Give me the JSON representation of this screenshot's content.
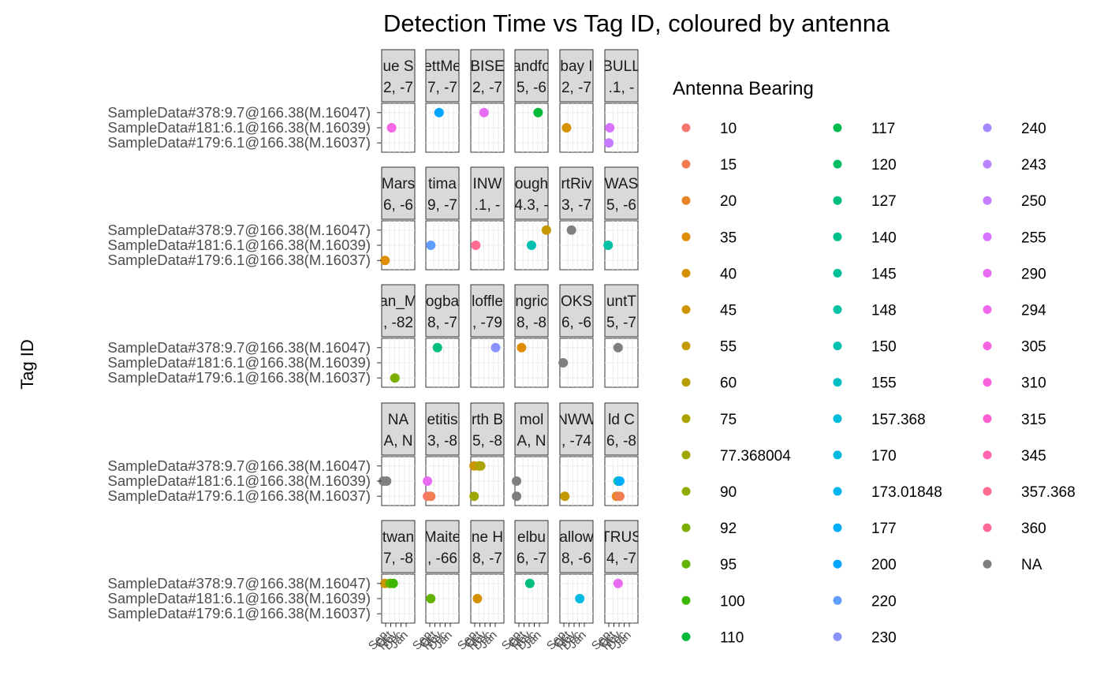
{
  "chart_data": {
    "type": "scatter",
    "title": "Detection Time vs Tag ID, coloured by antenna",
    "ylabel": "Tag ID",
    "y_categories": [
      "SampleData#378:9.7@166.38(M.16047)",
      "SampleData#181:6.1@166.38(M.16039)",
      "SampleData#179:6.1@166.38(M.16037)"
    ],
    "x_tick_labels": [
      "Sep",
      "Oct",
      "Nov",
      "Dec",
      "Jan"
    ],
    "legend_title": "Antenna Bearing",
    "legend": [
      {
        "label": "10",
        "color": "#F8766D"
      },
      {
        "label": "15",
        "color": "#F27D52"
      },
      {
        "label": "20",
        "color": "#E88526"
      },
      {
        "label": "35",
        "color": "#DE8C00"
      },
      {
        "label": "40",
        "color": "#D69100"
      },
      {
        "label": "45",
        "color": "#CD9600"
      },
      {
        "label": "55",
        "color": "#C49A00"
      },
      {
        "label": "60",
        "color": "#B79F00"
      },
      {
        "label": "75",
        "color": "#ABA300"
      },
      {
        "label": "77.368004",
        "color": "#9DA700"
      },
      {
        "label": "90",
        "color": "#8EAB00"
      },
      {
        "label": "92",
        "color": "#7CAE00"
      },
      {
        "label": "95",
        "color": "#64B200"
      },
      {
        "label": "100",
        "color": "#3DB600"
      },
      {
        "label": "110",
        "color": "#00BA38"
      },
      {
        "label": "117",
        "color": "#00BB4E"
      },
      {
        "label": "120",
        "color": "#00BD5F"
      },
      {
        "label": "127",
        "color": "#00BF7D"
      },
      {
        "label": "140",
        "color": "#00C08B"
      },
      {
        "label": "145",
        "color": "#00C097"
      },
      {
        "label": "148",
        "color": "#00C1A3"
      },
      {
        "label": "150",
        "color": "#00C0AF"
      },
      {
        "label": "155",
        "color": "#00BFC4"
      },
      {
        "label": "157.368",
        "color": "#00BCD8"
      },
      {
        "label": "170",
        "color": "#00B9E3"
      },
      {
        "label": "173.01848",
        "color": "#00B4EF"
      },
      {
        "label": "177",
        "color": "#00ADFA"
      },
      {
        "label": "200",
        "color": "#00A5FF"
      },
      {
        "label": "220",
        "color": "#619CFF"
      },
      {
        "label": "230",
        "color": "#8B93FF"
      },
      {
        "label": "240",
        "color": "#A58AFF"
      },
      {
        "label": "243",
        "color": "#B983FF"
      },
      {
        "label": "250",
        "color": "#C77CFF"
      },
      {
        "label": "255",
        "color": "#D774FD"
      },
      {
        "label": "290",
        "color": "#E76BF3"
      },
      {
        "label": "294",
        "color": "#EF67EB"
      },
      {
        "label": "305",
        "color": "#F564E3"
      },
      {
        "label": "310",
        "color": "#FA62DB"
      },
      {
        "label": "315",
        "color": "#FD61D1"
      },
      {
        "label": "345",
        "color": "#FF64B0"
      },
      {
        "label": "357.368",
        "color": "#FF6C91"
      },
      {
        "label": "360",
        "color": "#FF6A98"
      },
      {
        "label": "NA",
        "color": "#7F7F7F"
      }
    ],
    "panels": [
      {
        "strip": [
          "ue S",
          "2, -7"
        ],
        "points": [
          {
            "x": 0.3,
            "y": 1,
            "c": "#F564E3"
          }
        ]
      },
      {
        "strip": [
          "ettMe",
          "7, -7"
        ],
        "points": [
          {
            "x": 0.4,
            "y": 0,
            "c": "#00A5FF"
          }
        ]
      },
      {
        "strip": [
          "BISE",
          "2, -7"
        ],
        "points": [
          {
            "x": 0.4,
            "y": 0,
            "c": "#E76BF3"
          }
        ]
      },
      {
        "strip": [
          "andfo",
          "5, -6"
        ],
        "points": [
          {
            "x": 0.7,
            "y": 0,
            "c": "#00BA38"
          }
        ]
      },
      {
        "strip": [
          "bay I",
          "2, -7"
        ],
        "points": [
          {
            "x": 0.2,
            "y": 1,
            "c": "#D69100"
          }
        ]
      },
      {
        "strip": [
          "BULL",
          ".1, -"
        ],
        "points": [
          {
            "x": 0.15,
            "y": 1,
            "c": "#D774FD"
          },
          {
            "x": 0.12,
            "y": 2,
            "c": "#C77CFF"
          }
        ]
      },
      {
        "strip": [
          "Mars",
          "6, -6"
        ],
        "points": [
          {
            "x": 0.1,
            "y": 2,
            "c": "#DE8C00"
          }
        ]
      },
      {
        "strip": [
          "tima",
          "9, -7"
        ],
        "points": [
          {
            "x": 0.15,
            "y": 1,
            "c": "#619CFF"
          }
        ]
      },
      {
        "strip": [
          "INW",
          ".1, -"
        ],
        "points": [
          {
            "x": 0.15,
            "y": 1,
            "c": "#FF6C91"
          }
        ]
      },
      {
        "strip": [
          "ough",
          "4.3, -"
        ],
        "points": [
          {
            "x": 0.5,
            "y": 1,
            "c": "#00C0AF"
          },
          {
            "x": 0.95,
            "y": 0,
            "c": "#C49A00"
          }
        ]
      },
      {
        "strip": [
          "rtRiv",
          "3, -7"
        ],
        "points": [
          {
            "x": 0.35,
            "y": 0,
            "c": "#7F7F7F"
          }
        ]
      },
      {
        "strip": [
          "WAS",
          "5, -6"
        ],
        "points": [
          {
            "x": 0.1,
            "y": 1,
            "c": "#00C1A3"
          }
        ]
      },
      {
        "strip": [
          "an_M",
          ", -82"
        ],
        "points": [
          {
            "x": 0.4,
            "y": 2,
            "c": "#7CAE00"
          }
        ]
      },
      {
        "strip": [
          "ogba",
          "8, -7"
        ],
        "points": [
          {
            "x": 0.35,
            "y": 0,
            "c": "#00BF7D"
          }
        ]
      },
      {
        "strip": [
          "loffle",
          ", -79"
        ],
        "points": [
          {
            "x": 0.75,
            "y": 0,
            "c": "#8B93FF"
          }
        ]
      },
      {
        "strip": [
          "ngric",
          "8, -8"
        ],
        "points": [
          {
            "x": 0.2,
            "y": 0,
            "c": "#DE8C00"
          }
        ]
      },
      {
        "strip": [
          "OKS",
          "6, -6"
        ],
        "points": [
          {
            "x": 0.1,
            "y": 1,
            "c": "#7F7F7F"
          }
        ]
      },
      {
        "strip": [
          "untT",
          "5, -7"
        ],
        "points": [
          {
            "x": 0.4,
            "y": 0,
            "c": "#7F7F7F"
          }
        ]
      },
      {
        "strip": [
          "NA",
          "A, N"
        ],
        "points": [
          {
            "x": 0.05,
            "y": 1,
            "c": "#7F7F7F"
          },
          {
            "x": 0.15,
            "y": 1,
            "c": "#7F7F7F"
          }
        ]
      },
      {
        "strip": [
          "etitis",
          "3, -8"
        ],
        "points": [
          {
            "x": 0.05,
            "y": 1,
            "c": "#E76BF3"
          },
          {
            "x": 0.05,
            "y": 2,
            "c": "#F8766D"
          },
          {
            "x": 0.15,
            "y": 2,
            "c": "#F27D52"
          }
        ]
      },
      {
        "strip": [
          "rth B",
          "5, -8"
        ],
        "points": [
          {
            "x": 0.1,
            "y": 0,
            "c": "#CD9600"
          },
          {
            "x": 0.25,
            "y": 0,
            "c": "#B79F00"
          },
          {
            "x": 0.3,
            "y": 0,
            "c": "#ABA300"
          },
          {
            "x": 0.1,
            "y": 2,
            "c": "#9DA700"
          }
        ]
      },
      {
        "strip": [
          "mol",
          "A, N"
        ],
        "points": [
          {
            "x": 0.05,
            "y": 1,
            "c": "#7F7F7F"
          },
          {
            "x": 0.05,
            "y": 2,
            "c": "#7F7F7F"
          }
        ]
      },
      {
        "strip": [
          "NWW",
          ", -74"
        ],
        "points": [
          {
            "x": 0.15,
            "y": 2,
            "c": "#C49A00"
          }
        ]
      },
      {
        "strip": [
          "ld C",
          "6, -8"
        ],
        "points": [
          {
            "x": 0.4,
            "y": 1,
            "c": "#00C0AF"
          },
          {
            "x": 0.45,
            "y": 1,
            "c": "#00ADFA"
          },
          {
            "x": 0.35,
            "y": 2,
            "c": "#E88526"
          },
          {
            "x": 0.45,
            "y": 2,
            "c": "#F27D52"
          }
        ]
      },
      {
        "strip": [
          "twan",
          "7, -8"
        ],
        "points": [
          {
            "x": 0.1,
            "y": 0,
            "c": "#CD9600"
          },
          {
            "x": 0.25,
            "y": 0,
            "c": "#64B200"
          },
          {
            "x": 0.35,
            "y": 0,
            "c": "#3DB600"
          }
        ]
      },
      {
        "strip": [
          "Maite",
          ", -66"
        ],
        "points": [
          {
            "x": 0.15,
            "y": 1,
            "c": "#64B200"
          }
        ]
      },
      {
        "strip": [
          "ne H",
          "8, -7"
        ],
        "points": [
          {
            "x": 0.2,
            "y": 1,
            "c": "#D69100"
          }
        ]
      },
      {
        "strip": [
          "elbu",
          "6, -7"
        ],
        "points": [
          {
            "x": 0.45,
            "y": 0,
            "c": "#00BF7D"
          }
        ]
      },
      {
        "strip": [
          "allow",
          "8, -6"
        ],
        "points": [
          {
            "x": 0.6,
            "y": 1,
            "c": "#00B9E3"
          }
        ]
      },
      {
        "strip": [
          "TRUS",
          "4, -7"
        ],
        "points": [
          {
            "x": 0.4,
            "y": 0,
            "c": "#E76BF3"
          }
        ]
      }
    ]
  }
}
